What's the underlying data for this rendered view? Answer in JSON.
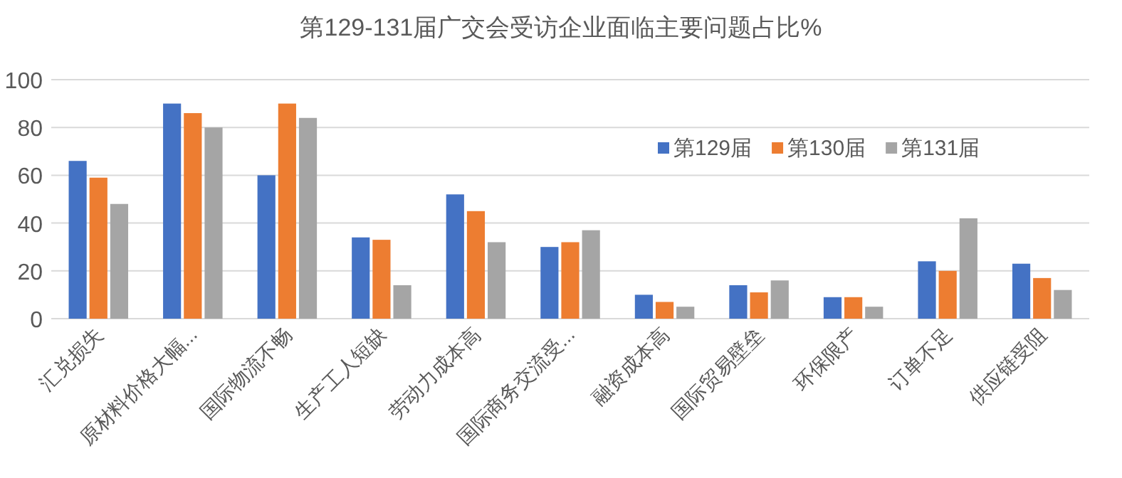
{
  "chart_data": {
    "type": "bar",
    "title": "第129-131届广交会受访企业面临主要问题占比%",
    "categories": [
      "汇兑损失",
      "原材料价格大幅...",
      "国际物流不畅",
      "生产工人短缺",
      "劳动力成本高",
      "国际商务交流受...",
      "融资成本高",
      "国际贸易壁垒",
      "环保限产",
      "订单不足",
      "供应链受阻"
    ],
    "series": [
      {
        "name": "第129届",
        "color": "#4472c4",
        "values": [
          66,
          90,
          60,
          34,
          52,
          30,
          10,
          14,
          9,
          24,
          23
        ]
      },
      {
        "name": "第130届",
        "color": "#ed7d31",
        "values": [
          59,
          86,
          90,
          33,
          45,
          32,
          7,
          11,
          9,
          20,
          17
        ]
      },
      {
        "name": "第131届",
        "color": "#a5a5a5",
        "values": [
          48,
          80,
          84,
          14,
          32,
          37,
          5,
          16,
          5,
          42,
          12
        ]
      }
    ],
    "ylim": [
      0,
      100
    ],
    "yticks": [
      0,
      20,
      40,
      60,
      80,
      100
    ],
    "grid": "y",
    "legend": "top right"
  }
}
